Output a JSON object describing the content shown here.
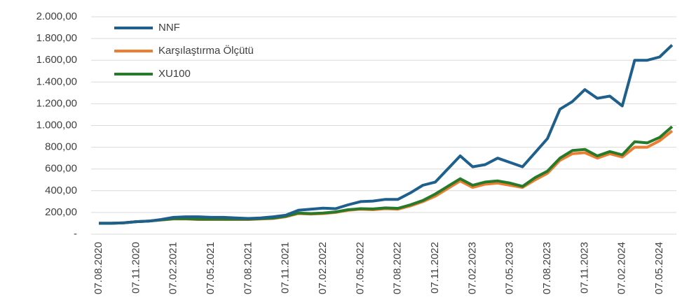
{
  "chart_data": {
    "type": "line",
    "categories": [
      "07.08.2020",
      null,
      null,
      "07.11.2020",
      null,
      null,
      "07.02.2021",
      null,
      null,
      "07.05.2021",
      null,
      null,
      "07.08.2021",
      null,
      null,
      "07.11.2021",
      null,
      null,
      "07.02.2022",
      null,
      null,
      "07.05.2022",
      null,
      null,
      "07.08.2022",
      null,
      null,
      "07.11.2022",
      null,
      null,
      "07.02.2023",
      null,
      null,
      "07.05.2023",
      null,
      null,
      "07.08.2023",
      null,
      null,
      "07.11.2023",
      null,
      null,
      "07.02.2024",
      null,
      null,
      "07.05.2024",
      null
    ],
    "series": [
      {
        "name": "NNF",
        "color": "#1f5f8b",
        "values": [
          100,
          100,
          105,
          115,
          120,
          135,
          155,
          160,
          160,
          155,
          155,
          150,
          145,
          150,
          160,
          175,
          220,
          230,
          240,
          235,
          270,
          300,
          305,
          320,
          320,
          380,
          450,
          480,
          600,
          720,
          620,
          640,
          700,
          660,
          620,
          750,
          880,
          1150,
          1220,
          1330,
          1250,
          1270,
          1180,
          1600,
          1600,
          1630,
          1740
        ]
      },
      {
        "name": "Karşılaştırma Ölçütü",
        "color": "#ed7d31",
        "values": [
          100,
          100,
          105,
          115,
          120,
          130,
          140,
          140,
          135,
          135,
          135,
          135,
          135,
          140,
          145,
          160,
          190,
          185,
          190,
          200,
          220,
          230,
          225,
          235,
          230,
          260,
          300,
          350,
          420,
          490,
          430,
          460,
          470,
          450,
          430,
          500,
          560,
          680,
          740,
          750,
          700,
          740,
          710,
          800,
          800,
          860,
          950
        ]
      },
      {
        "name": "XU100",
        "color": "#267a2a",
        "values": [
          100,
          100,
          105,
          115,
          120,
          132,
          142,
          142,
          138,
          138,
          138,
          138,
          138,
          143,
          148,
          165,
          195,
          190,
          195,
          205,
          225,
          235,
          232,
          242,
          238,
          270,
          310,
          370,
          440,
          510,
          450,
          480,
          490,
          470,
          440,
          520,
          580,
          700,
          770,
          780,
          720,
          760,
          730,
          850,
          840,
          890,
          990
        ]
      }
    ],
    "ylim": [
      0,
      2000
    ],
    "yticks": [
      {
        "value": 0,
        "label": "-"
      },
      {
        "value": 200,
        "label": "200,00"
      },
      {
        "value": 400,
        "label": "400,00"
      },
      {
        "value": 600,
        "label": "600,00"
      },
      {
        "value": 800,
        "label": "800,00"
      },
      {
        "value": 1000,
        "label": "1.000,00"
      },
      {
        "value": 1200,
        "label": "1.200,00"
      },
      {
        "value": 1400,
        "label": "1.400,00"
      },
      {
        "value": 1600,
        "label": "1.600,00"
      },
      {
        "value": 1800,
        "label": "1.800,00"
      },
      {
        "value": 2000,
        "label": "2.000,00"
      }
    ],
    "grid": true,
    "legend": "upper left"
  }
}
